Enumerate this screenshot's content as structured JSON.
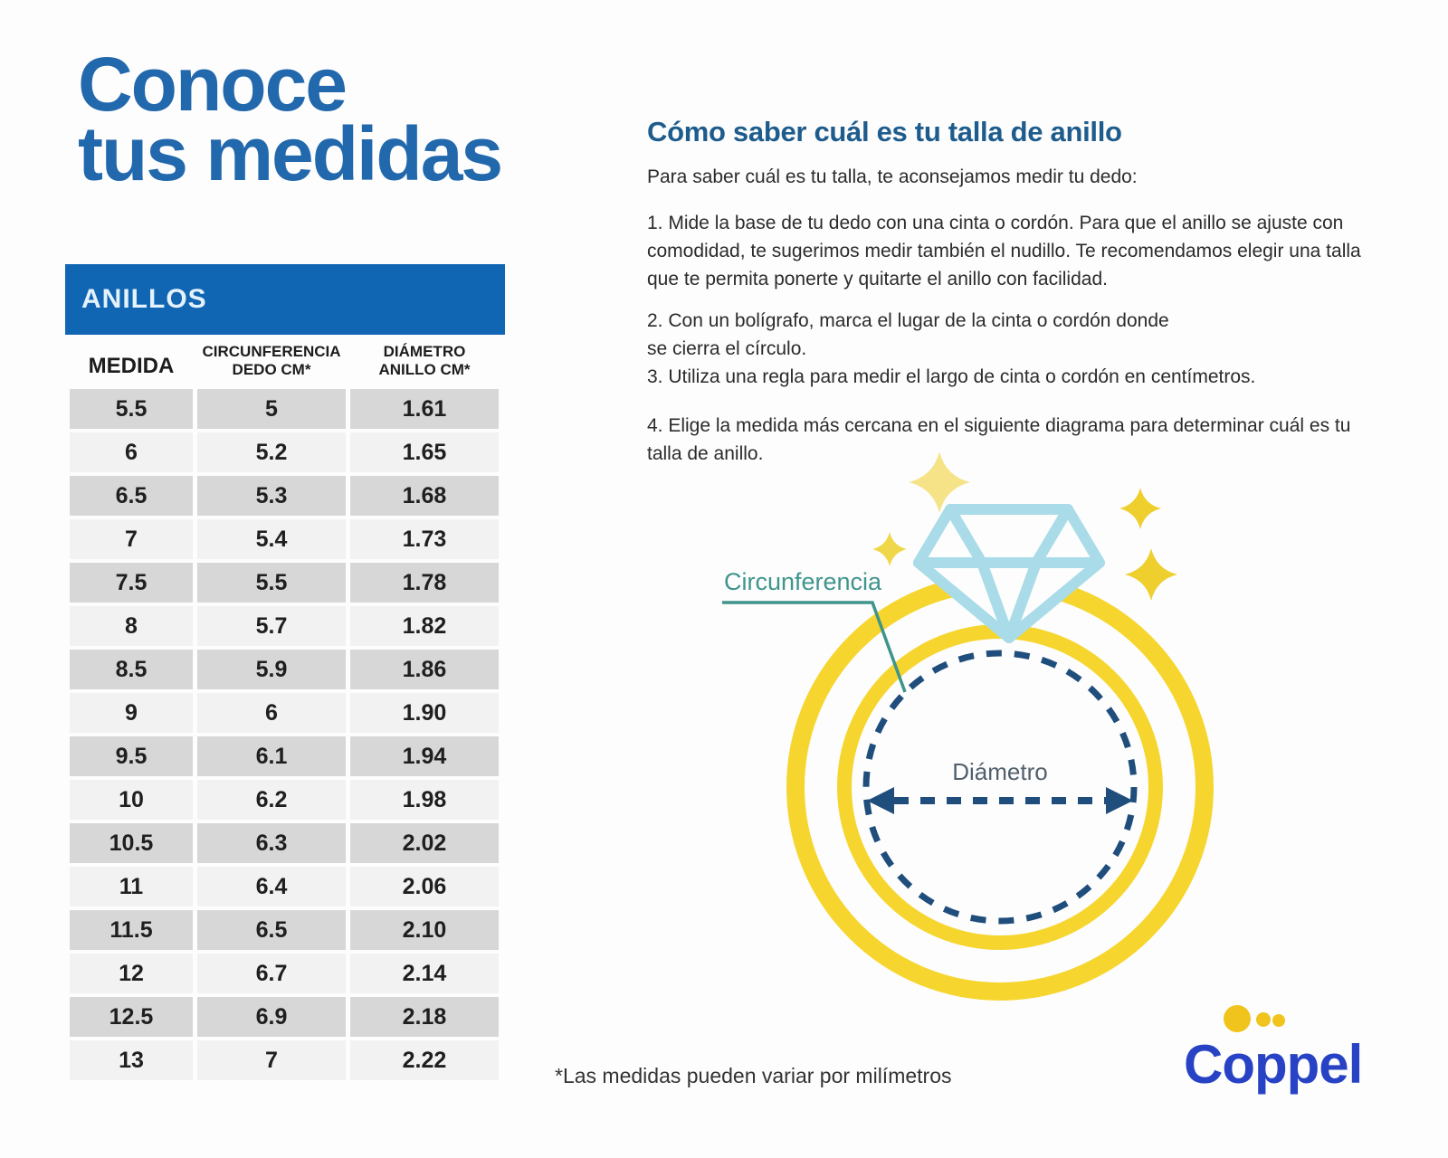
{
  "page": {
    "title_line1": "Conoce",
    "title_line2": "tus medidas",
    "footnote": "*Las medidas pueden variar por milímetros"
  },
  "table": {
    "title": "ANILLOS",
    "columns": [
      "MEDIDA",
      "CIRCUNFERENCIA\nDEDO CM*",
      "DIÁMETRO\nANILLO CM*"
    ],
    "rows": [
      [
        "5.5",
        "5",
        "1.61"
      ],
      [
        "6",
        "5.2",
        "1.65"
      ],
      [
        "6.5",
        "5.3",
        "1.68"
      ],
      [
        "7",
        "5.4",
        "1.73"
      ],
      [
        "7.5",
        "5.5",
        "1.78"
      ],
      [
        "8",
        "5.7",
        "1.82"
      ],
      [
        "8.5",
        "5.9",
        "1.86"
      ],
      [
        "9",
        "6",
        "1.90"
      ],
      [
        "9.5",
        "6.1",
        "1.94"
      ],
      [
        "10",
        "6.2",
        "1.98"
      ],
      [
        "10.5",
        "6.3",
        "2.02"
      ],
      [
        "11",
        "6.4",
        "2.06"
      ],
      [
        "11.5",
        "6.5",
        "2.10"
      ],
      [
        "12",
        "6.7",
        "2.14"
      ],
      [
        "12.5",
        "6.9",
        "2.18"
      ],
      [
        "13",
        "7",
        "2.22"
      ]
    ]
  },
  "instructions": {
    "heading": "Cómo saber cuál es tu talla de anillo",
    "intro": "Para saber cuál es tu talla, te aconsejamos medir tu dedo:",
    "steps": [
      "1. Mide la base de tu dedo con una cinta o cordón. Para que el anillo se ajuste con comodidad, te sugerimos medir también el nudillo. Te recomendamos elegir una talla que te permita ponerte y quitarte el anillo con facilidad.",
      "2. Con un bolígrafo, marca el lugar de la cinta o cordón donde\nse cierra el círculo.",
      "3. Utiliza una regla para medir el largo de cinta o cordón en centímetros.",
      "4. Elige la medida más cercana en el siguiente diagrama para determinar cuál es tu talla de anillo."
    ]
  },
  "diagram": {
    "circumference_label": "Circunferencia",
    "diameter_label": "Diámetro"
  },
  "logo": {
    "text": "Coppel"
  },
  "colors": {
    "title_blue": "#2268ac",
    "table_bar_blue": "#1166b3",
    "heading_blue": "#1d5c8c",
    "ring_yellow": "#f6d62e",
    "diamond_blue": "#a9dce8",
    "teal_label": "#3f948c",
    "navy_dashed": "#1f4e7c",
    "logo_blue": "#2742c4",
    "logo_yellow": "#f0c41c",
    "row_gray": "#d7d7d7",
    "row_light": "#f2f2f2"
  }
}
